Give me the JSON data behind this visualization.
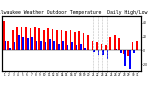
{
  "title": "Milwaukee Weather Outdoor Temperature  Daily High/Low",
  "title_fontsize": 3.5,
  "background_color": "#ffffff",
  "high_color": "#ff0000",
  "low_color": "#0000ff",
  "dashed_color": "#aaaaaa",
  "days": [
    1,
    2,
    3,
    4,
    5,
    6,
    7,
    8,
    9,
    10,
    11,
    12,
    13,
    14,
    15,
    16,
    17,
    18,
    19,
    20,
    21,
    22,
    23,
    24,
    25,
    26,
    27,
    28,
    29,
    30,
    31
  ],
  "highs": [
    42,
    14,
    30,
    34,
    34,
    34,
    32,
    33,
    32,
    30,
    32,
    31,
    29,
    30,
    28,
    29,
    27,
    28,
    25,
    22,
    14,
    12,
    10,
    8,
    20,
    22,
    18,
    -5,
    -8,
    12,
    14
  ],
  "lows": [
    14,
    4,
    12,
    22,
    20,
    18,
    20,
    14,
    14,
    12,
    16,
    14,
    10,
    14,
    8,
    12,
    8,
    10,
    4,
    0,
    -2,
    -6,
    -6,
    -12,
    0,
    2,
    -4,
    -22,
    -26,
    -4,
    0
  ],
  "dashed_lines": [
    21,
    22,
    23,
    24
  ],
  "xlim": [
    0.3,
    31.7
  ],
  "ylim": [
    -30,
    50
  ],
  "yticks": [
    -20,
    0,
    20,
    40
  ],
  "ytick_labels": [
    "-20",
    "0",
    "20",
    "40"
  ]
}
